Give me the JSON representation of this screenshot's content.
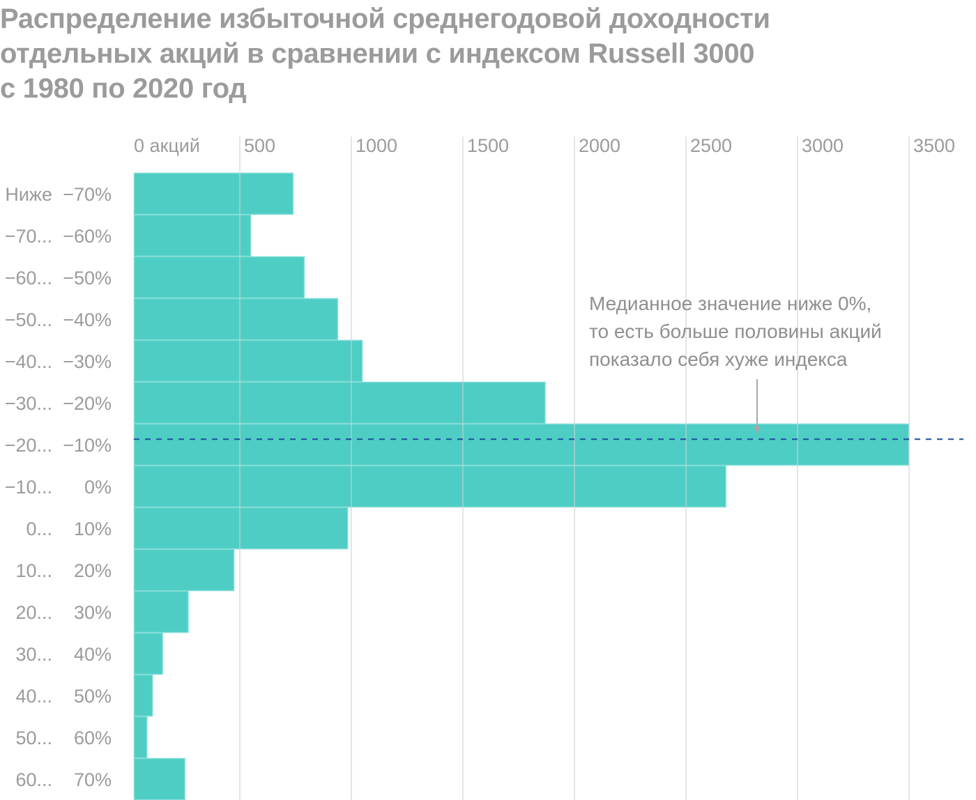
{
  "title_lines": [
    "Распределение избыточной среднегодовой доходности",
    "отдельных акций в сравнении с индексом Russell 3000",
    "с 1980 по 2020 год"
  ],
  "colors": {
    "bar": "#4ECDC4",
    "bar_border": "#7FDDD6",
    "median_line": "#1A4E9A",
    "grid": "#e3e3e3",
    "text": "#9b9b9b",
    "arrow": "#a8a8a8"
  },
  "chart_data": {
    "type": "bar",
    "orientation": "horizontal",
    "title": "Распределение избыточной среднегодовой доходности отдельных акций в сравнении с индексом Russell 3000 с 1980 по 2020 год",
    "xlabel": "",
    "ylabel": "",
    "x_tick_labels": [
      "0 акций",
      "500",
      "1000",
      "1500",
      "2000",
      "2500",
      "3000",
      "3500"
    ],
    "x_ticks": [
      0,
      500,
      1000,
      1500,
      2000,
      2500,
      3000,
      3500
    ],
    "xlim": [
      0,
      3500
    ],
    "x_axis_position": "top",
    "grid": true,
    "categories": [
      {
        "from": "Ниже",
        "to": "−70%"
      },
      {
        "from": "−70...",
        "to": "−60%"
      },
      {
        "from": "−60...",
        "to": "−50%"
      },
      {
        "from": "−50...",
        "to": "−40%"
      },
      {
        "from": "−40...",
        "to": "−30%"
      },
      {
        "from": "−30...",
        "to": "−20%"
      },
      {
        "from": "−20...",
        "to": "−10%"
      },
      {
        "from": "−10...",
        "to": "0%"
      },
      {
        "from": "0...",
        "to": "10%"
      },
      {
        "from": "10...",
        "to": "20%"
      },
      {
        "from": "20...",
        "to": "30%"
      },
      {
        "from": "30...",
        "to": "40%"
      },
      {
        "from": "40...",
        "to": "50%"
      },
      {
        "from": "50...",
        "to": "60%"
      },
      {
        "from": "60...",
        "to": "70%"
      }
    ],
    "values": [
      740,
      550,
      790,
      940,
      1050,
      1870,
      3500,
      2680,
      985,
      475,
      270,
      155,
      110,
      85,
      255
    ],
    "median_marker": {
      "category_index": 6,
      "position_within_bin": 0.37,
      "style": "dashed"
    },
    "annotation": {
      "lines": [
        "Медианное значение ниже 0%,",
        "то есть больше половины акций",
        "показало себя хуже индекса"
      ],
      "arrow_to": "median line at x ≈ 2760"
    }
  }
}
